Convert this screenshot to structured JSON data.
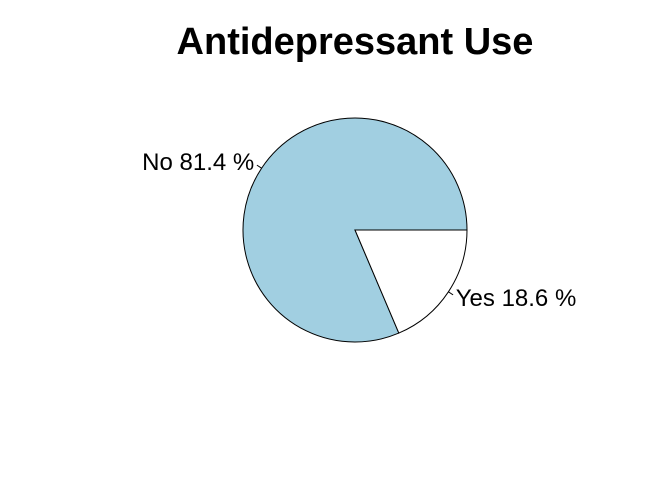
{
  "chart_data": {
    "type": "pie",
    "title": "Antidepressant Use",
    "slices": [
      {
        "label": "No",
        "value": 81.4,
        "label_text": "No 81.4 %",
        "color": "#a1cfe1"
      },
      {
        "label": "Yes",
        "value": 18.6,
        "label_text": "Yes 18.6 %",
        "color": "#ffffff"
      }
    ],
    "start_angle_deg": 0,
    "direction": "counterclockwise",
    "legend": "none"
  }
}
